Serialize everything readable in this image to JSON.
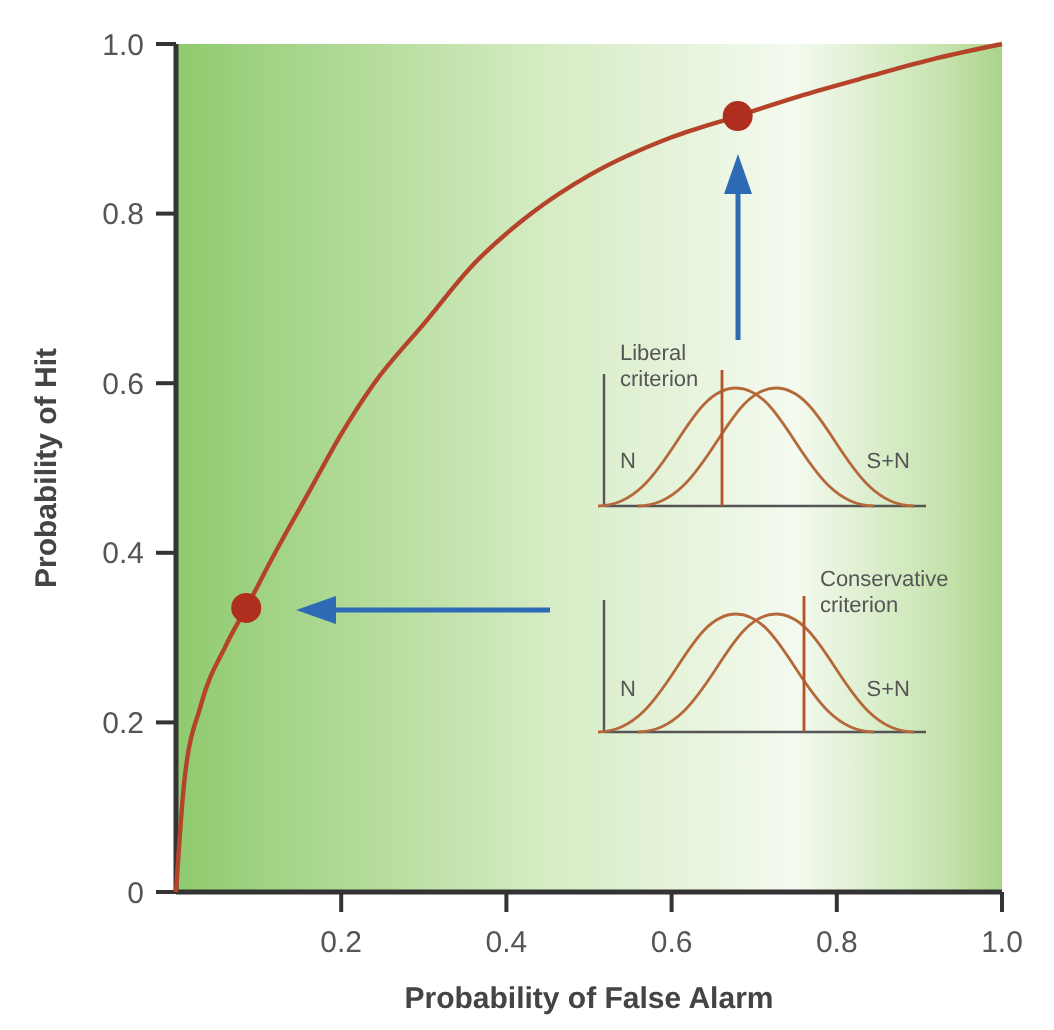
{
  "chart_data": {
    "type": "line",
    "xlabel": "Probability of False Alarm",
    "ylabel": "Probability of Hit",
    "xlim": [
      0,
      1
    ],
    "ylim": [
      0,
      1
    ],
    "xticks": [
      0.2,
      0.4,
      0.6,
      0.8,
      {
        "value": 1,
        "label": "1.0"
      }
    ],
    "yticks": [
      0,
      0.2,
      0.4,
      0.6,
      0.8,
      {
        "value": 1,
        "label": "1.0"
      }
    ],
    "grid": false,
    "series": [
      {
        "color": "#b5432a",
        "marker": "none",
        "line_style": "solid",
        "x": [
          0,
          0.01,
          0.03,
          0.06,
          0.085,
          0.12,
          0.16,
          0.2,
          0.24,
          0.3,
          0.36,
          0.43,
          0.5,
          0.6,
          0.68,
          0.76,
          0.84,
          0.92,
          1.0
        ],
        "values": [
          0,
          0.13,
          0.22,
          0.29,
          0.335,
          0.4,
          0.47,
          0.54,
          0.6,
          0.67,
          0.74,
          0.8,
          0.845,
          0.89,
          0.915,
          0.94,
          0.962,
          0.983,
          1.0
        ]
      },
      {
        "type": "scatter",
        "color": "#b02e1e",
        "marker": "circle",
        "x": [
          0.085,
          0.68
        ],
        "values": [
          0.335,
          0.915
        ]
      }
    ],
    "annotations": [
      "Liberal criterion",
      "N",
      "S+N",
      "Conservative criterion",
      "N",
      "S+N"
    ]
  }
}
